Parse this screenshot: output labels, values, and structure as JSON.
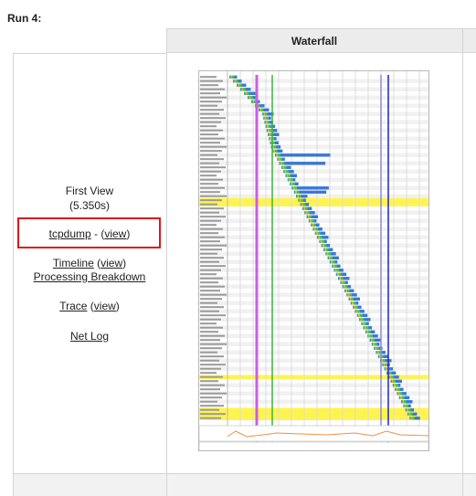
{
  "run": {
    "heading": "Run 4:"
  },
  "table": {
    "waterfall_header": "Waterfall"
  },
  "first_view": {
    "label": "First View",
    "time": "(5.350s)",
    "tcpdump_link": "tcpdump",
    "separator": " - (",
    "view_link": "view",
    "close_paren": ")",
    "timeline_link": "Timeline",
    "timeline_open": " (",
    "timeline_view_link": "view",
    "timeline_close": ")",
    "processing_link": "Processing Breakdown",
    "trace_link": "Trace",
    "trace_open": " (",
    "trace_view_link": "view",
    "trace_close": ")",
    "netlog_link": "Net Log"
  },
  "colors": {
    "highlight_box": "#e0161c",
    "row_highlight": "#fff44f",
    "dns": "#2ea79e",
    "connect": "#f4a23c",
    "ssl": "#c43fd6",
    "ttfb": "#40ca3a",
    "download": "#3978d6",
    "start_render": "#3bb33b",
    "dom_content": "#c95fe0",
    "document_complete": "#2323c6",
    "onload": "#8c8cd6",
    "cpu_line": "#f09048",
    "bandwidth_line": "#3ab03a"
  },
  "icons": [
    "waterfall-thumbnail-image"
  ]
}
